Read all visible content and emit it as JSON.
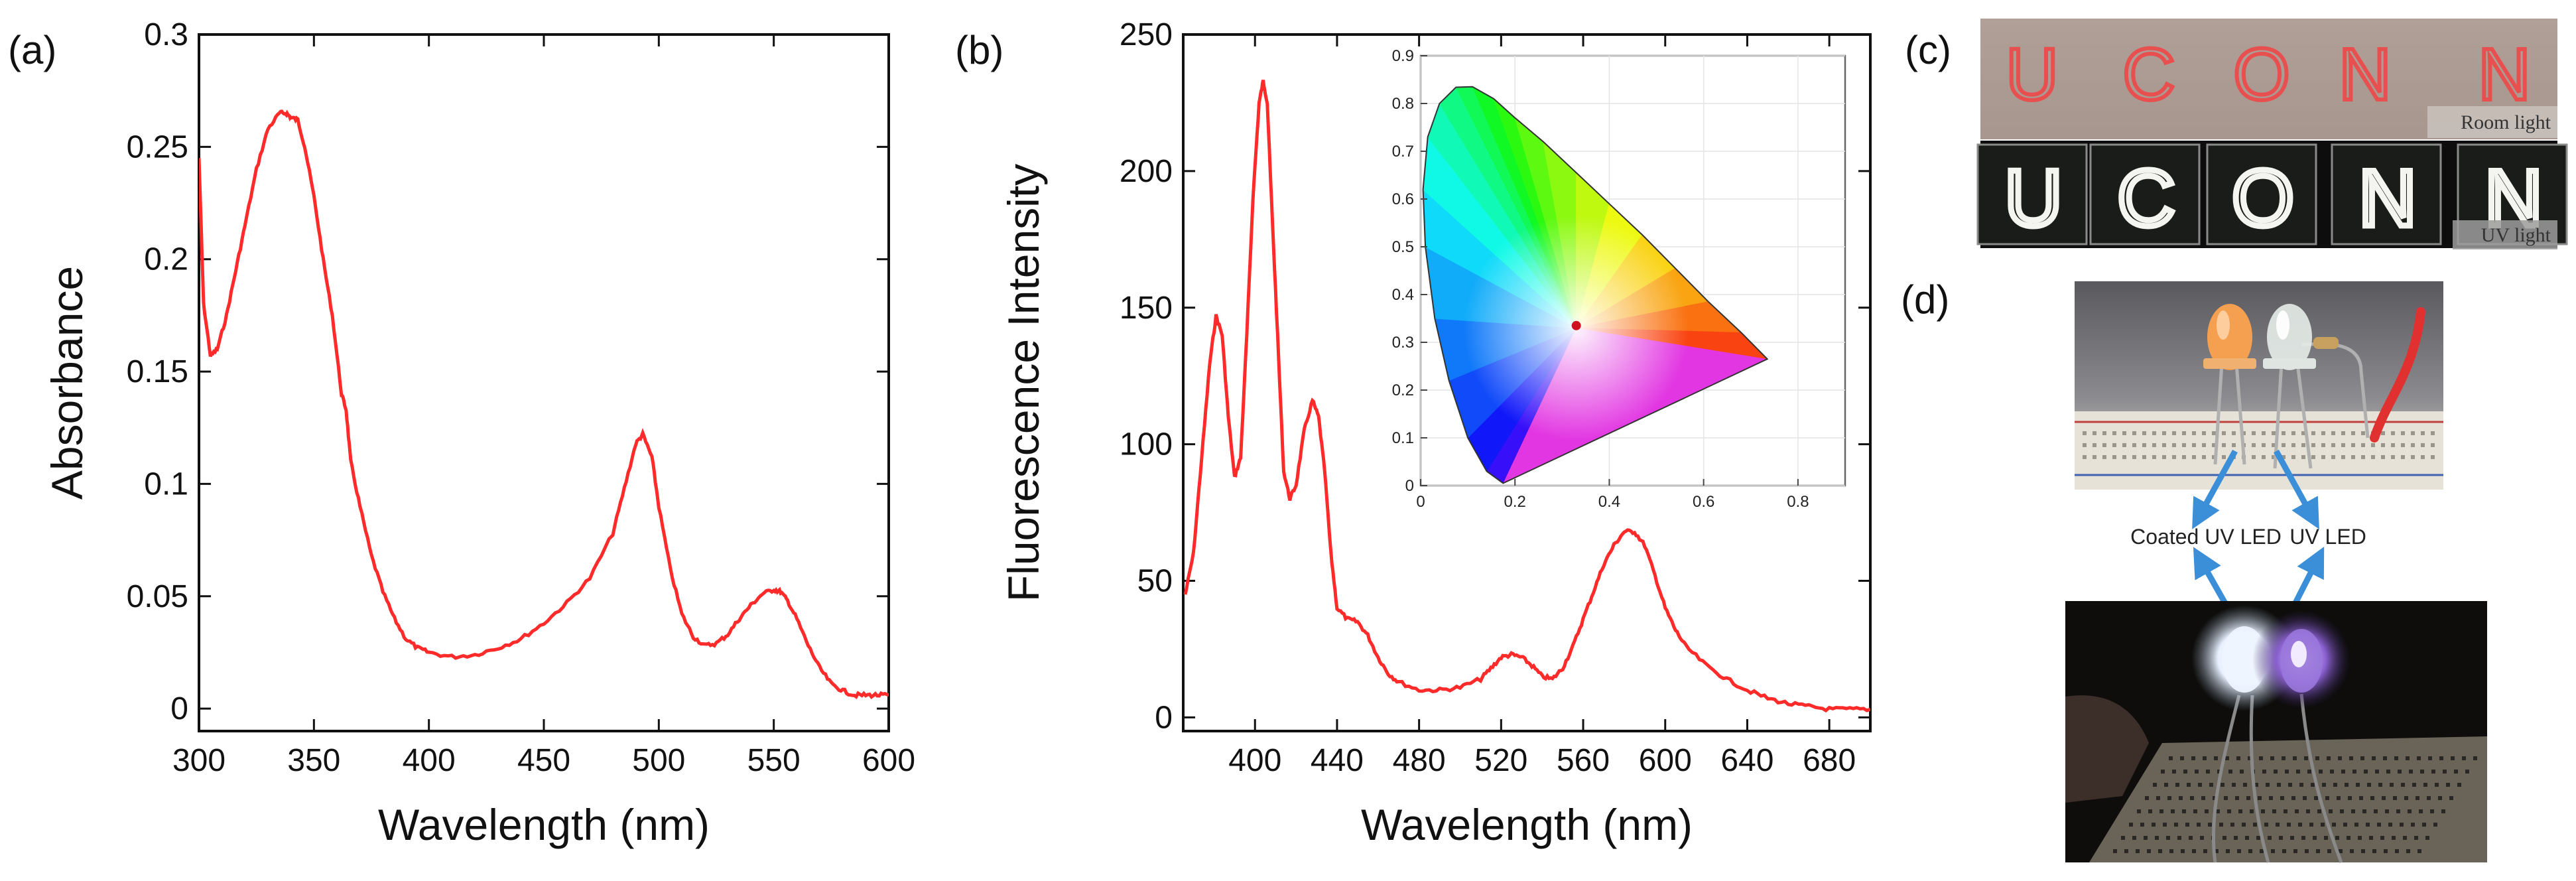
{
  "panels": {
    "a": "(a)",
    "b": "(b)",
    "c": "(c)",
    "d": "(d)"
  },
  "chart_data": [
    {
      "id": "a",
      "type": "line",
      "title": "",
      "xlabel": "Wavelength (nm)",
      "ylabel": "Absorbance",
      "xlim": [
        300,
        600
      ],
      "ylim": [
        -0.01,
        0.3
      ],
      "xticks": [
        300,
        350,
        400,
        450,
        500,
        550,
        600
      ],
      "xtick_labels": [
        "300",
        "350",
        "400",
        "450",
        "500",
        "550",
        "600"
      ],
      "yticks": [
        0,
        0.05,
        0.1,
        0.15,
        0.2,
        0.25,
        0.3
      ],
      "ytick_labels": [
        "0",
        "0.05",
        "0.1",
        "0.15",
        "0.2",
        "0.25",
        "0.3"
      ],
      "grid": false,
      "color": "#ff2a2a",
      "series": [
        {
          "name": "Absorbance",
          "x": [
            300,
            302,
            305,
            308,
            312,
            316,
            320,
            325,
            330,
            335,
            338,
            340,
            343,
            346,
            350,
            354,
            358,
            362,
            364,
            366,
            370,
            375,
            380,
            385,
            390,
            395,
            400,
            410,
            420,
            430,
            440,
            450,
            460,
            470,
            480,
            485,
            490,
            493,
            497,
            500,
            505,
            510,
            515,
            520,
            525,
            530,
            535,
            540,
            545,
            550,
            553,
            556,
            560,
            565,
            570,
            575,
            580,
            585,
            590,
            595,
            600
          ],
          "y": [
            0.245,
            0.18,
            0.157,
            0.16,
            0.175,
            0.195,
            0.215,
            0.24,
            0.258,
            0.265,
            0.265,
            0.263,
            0.262,
            0.25,
            0.228,
            0.2,
            0.175,
            0.14,
            0.133,
            0.11,
            0.09,
            0.068,
            0.052,
            0.04,
            0.031,
            0.027,
            0.025,
            0.023,
            0.024,
            0.027,
            0.031,
            0.038,
            0.047,
            0.058,
            0.078,
            0.098,
            0.118,
            0.122,
            0.112,
            0.09,
            0.062,
            0.042,
            0.032,
            0.028,
            0.029,
            0.033,
            0.04,
            0.046,
            0.051,
            0.053,
            0.052,
            0.048,
            0.04,
            0.028,
            0.018,
            0.011,
            0.008,
            0.006,
            0.006,
            0.006,
            0.006
          ]
        }
      ]
    },
    {
      "id": "b",
      "type": "line",
      "title": "",
      "xlabel": "Wavelength (nm)",
      "ylabel": "Fluorescence Intensity",
      "xlim": [
        365,
        700
      ],
      "ylim": [
        -5,
        250
      ],
      "xticks": [
        400,
        440,
        480,
        520,
        560,
        600,
        640,
        680
      ],
      "xtick_labels": [
        "400",
        "440",
        "480",
        "520",
        "560",
        "600",
        "640",
        "680"
      ],
      "yticks": [
        0,
        50,
        100,
        150,
        200,
        250
      ],
      "ytick_labels": [
        "0",
        "50",
        "100",
        "150",
        "200",
        "250"
      ],
      "grid": false,
      "color": "#ff2a2a",
      "series": [
        {
          "name": "Fluorescence",
          "x": [
            366,
            370,
            374,
            378,
            381,
            384,
            387,
            390,
            393,
            396,
            399,
            402,
            404,
            406,
            408,
            411,
            414,
            417,
            420,
            424,
            428,
            431,
            434,
            437,
            440,
            445,
            450,
            455,
            460,
            465,
            470,
            480,
            490,
            500,
            510,
            515,
            520,
            525,
            530,
            535,
            540,
            545,
            550,
            555,
            560,
            565,
            570,
            575,
            580,
            585,
            590,
            595,
            600,
            605,
            610,
            620,
            630,
            640,
            650,
            660,
            670,
            680,
            690,
            700
          ],
          "y": [
            45,
            60,
            95,
            130,
            147,
            140,
            110,
            88,
            95,
            140,
            190,
            225,
            233,
            225,
            190,
            140,
            90,
            80,
            85,
            105,
            116,
            110,
            90,
            60,
            40,
            36,
            35,
            30,
            22,
            16,
            13,
            10,
            10,
            11,
            14,
            18,
            22,
            23,
            22,
            19,
            15,
            14,
            18,
            26,
            36,
            46,
            56,
            63,
            68,
            68,
            63,
            52,
            40,
            32,
            26,
            19,
            14,
            10,
            7,
            5,
            4,
            3,
            3,
            3
          ]
        }
      ]
    },
    {
      "id": "b-inset",
      "type": "scatter",
      "title": "",
      "xlim": [
        0,
        0.9
      ],
      "ylim": [
        0,
        0.9
      ],
      "xticks": [
        0,
        0.2,
        0.4,
        0.6,
        0.8
      ],
      "xtick_labels": [
        "0",
        "0.2",
        "0.4",
        "0.6",
        "0.8"
      ],
      "yticks": [
        0,
        0.1,
        0.2,
        0.3,
        0.4,
        0.5,
        0.6,
        0.7,
        0.8,
        0.9
      ],
      "ytick_labels": [
        "0",
        "0.1",
        "0.2",
        "0.3",
        "0.4",
        "0.5",
        "0.6",
        "0.7",
        "0.8",
        "0.9"
      ],
      "point": {
        "x": 0.33,
        "y": 0.335
      },
      "locus": {
        "x": [
          0.175,
          0.14,
          0.1,
          0.06,
          0.03,
          0.01,
          0.005,
          0.015,
          0.04,
          0.075,
          0.11,
          0.155,
          0.2,
          0.26,
          0.33,
          0.4,
          0.47,
          0.54,
          0.61,
          0.68,
          0.735
        ],
        "y": [
          0.005,
          0.03,
          0.1,
          0.22,
          0.35,
          0.5,
          0.62,
          0.73,
          0.8,
          0.834,
          0.835,
          0.81,
          0.77,
          0.72,
          0.655,
          0.59,
          0.525,
          0.455,
          0.385,
          0.32,
          0.265
        ]
      }
    }
  ],
  "photos": {
    "c_letters": [
      "U",
      "C",
      "O",
      "N",
      "N"
    ],
    "c_room_label": "Room light",
    "c_uv_label": "UV light",
    "d_left_label": "Coated UV LED",
    "d_right_label": "UV LED"
  }
}
